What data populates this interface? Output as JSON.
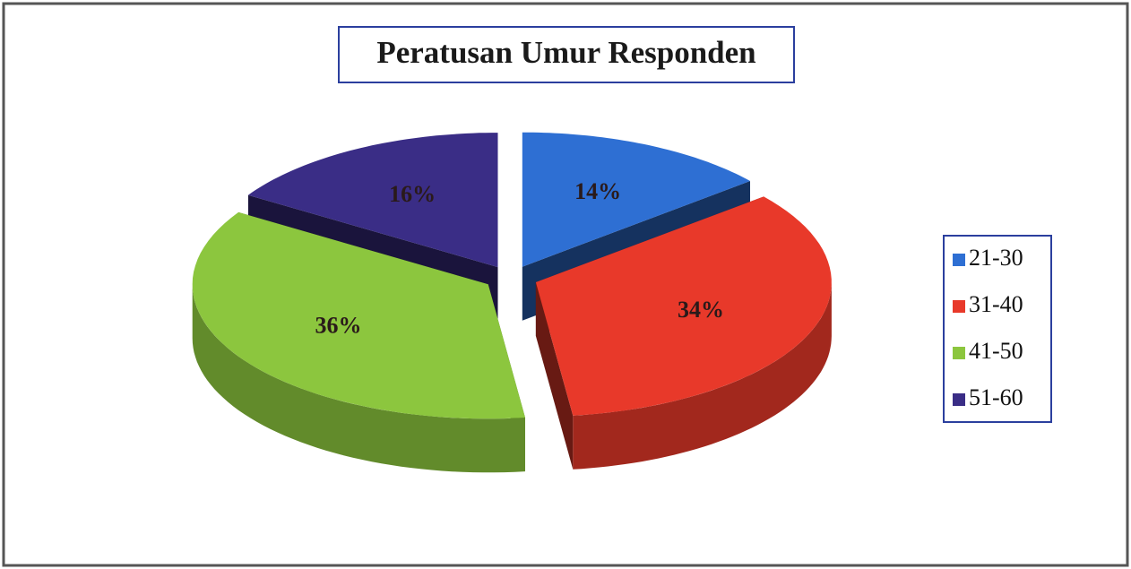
{
  "chart_data": {
    "type": "pie",
    "title": "Peratusan Umur Responden",
    "categories": [
      "21-30",
      "31-40",
      "41-50",
      "51-60"
    ],
    "values": [
      14,
      34,
      36,
      16
    ],
    "value_labels": [
      "14%",
      "34%",
      "36%",
      "16%"
    ],
    "colors": [
      "#2e6fd3",
      "#e8392a",
      "#8cc63e",
      "#3a2d86"
    ],
    "legend": "right"
  }
}
